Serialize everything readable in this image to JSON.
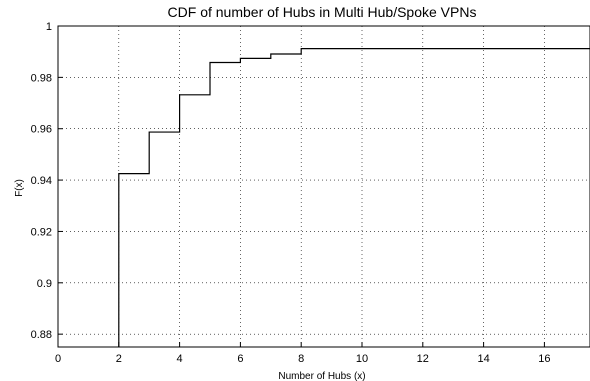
{
  "chart_data": {
    "type": "line",
    "step": true,
    "title": "CDF of number of Hubs in Multi Hub/Spoke VPNs",
    "xlabel": "Number of Hubs (x)",
    "ylabel": "F(x)",
    "xlim": [
      0,
      17.5
    ],
    "ylim": [
      0.875,
      1.0
    ],
    "grid": true,
    "xticks": [
      0,
      2,
      4,
      6,
      8,
      10,
      12,
      14,
      16
    ],
    "yticks": [
      0.88,
      0.9,
      0.92,
      0.94,
      0.96,
      0.98,
      1
    ],
    "ytick_labels": [
      "0.88",
      "0.9",
      "0.92",
      "0.94",
      "0.96",
      "0.98",
      "1"
    ],
    "x": [
      2,
      3,
      4,
      5,
      6,
      7,
      8,
      17.5
    ],
    "y": [
      0.9425,
      0.9587,
      0.9732,
      0.9858,
      0.9874,
      0.9891,
      0.9912,
      0.9912
    ],
    "series_color": "#000000"
  }
}
